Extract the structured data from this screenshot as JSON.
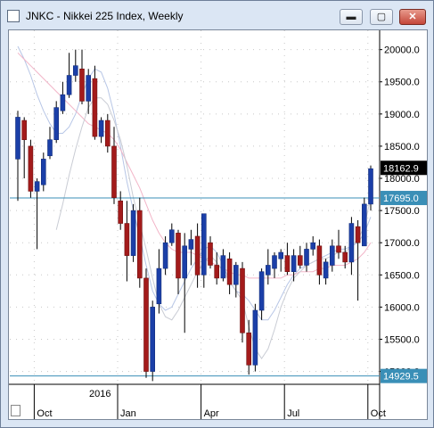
{
  "window": {
    "title": "JNKC - Nikkei 225 Index, Weekly",
    "buttons": {
      "minimize": "▬",
      "maximize": "▢",
      "close": "✕"
    }
  },
  "chart_data": {
    "type": "candlestick",
    "y_ticks": [
      15000.0,
      15500.0,
      16000.0,
      16500.0,
      17000.0,
      17500.0,
      18000.0,
      18500.0,
      19000.0,
      19500.0,
      20000.0
    ],
    "y_tick_labels": [
      "15000.0",
      "15500.0",
      "16000.0",
      "16500.0",
      "17000.0",
      "17500.0",
      "18000.0",
      "18500.0",
      "19000.0",
      "19500.0",
      "20000.0"
    ],
    "x_labels": [
      "Oct",
      "Jan",
      "Apr",
      "Jul",
      "Oct"
    ],
    "year_label": "2016",
    "current_price": 18162.9,
    "current_price_label": "18162.9",
    "hlines": [
      {
        "value": 17695.0,
        "label": "17695.0"
      },
      {
        "value": 14929.5,
        "label": "14929.5"
      }
    ],
    "candles": [
      [
        18300,
        19050,
        17650,
        18950
      ],
      [
        18900,
        18950,
        18000,
        18600
      ],
      [
        18500,
        18600,
        17700,
        17800
      ],
      [
        17800,
        18000,
        16900,
        17950
      ],
      [
        17900,
        18400,
        17800,
        18300
      ],
      [
        18350,
        18800,
        18300,
        18600
      ],
      [
        18600,
        19200,
        18550,
        19100
      ],
      [
        19050,
        19500,
        19000,
        19300
      ],
      [
        19300,
        19950,
        19250,
        19600
      ],
      [
        19600,
        20000,
        19500,
        19750
      ],
      [
        19700,
        20000,
        19150,
        19200
      ],
      [
        19200,
        19700,
        19000,
        19600
      ],
      [
        19550,
        19750,
        18600,
        18650
      ],
      [
        18650,
        18950,
        18550,
        18900
      ],
      [
        18900,
        19000,
        18400,
        18500
      ],
      [
        18500,
        18800,
        17600,
        17700
      ],
      [
        17650,
        17800,
        17200,
        17300
      ],
      [
        17300,
        17650,
        16400,
        16800
      ],
      [
        16800,
        17600,
        16700,
        17500
      ],
      [
        17500,
        17700,
        16300,
        16450
      ],
      [
        16450,
        16600,
        14900,
        15000
      ],
      [
        15000,
        16100,
        14850,
        16000
      ],
      [
        16050,
        16900,
        15900,
        16600
      ],
      [
        16600,
        17100,
        16500,
        17000
      ],
      [
        17000,
        17300,
        16950,
        17200
      ],
      [
        17150,
        17200,
        16200,
        16450
      ],
      [
        16450,
        17150,
        15600,
        16950
      ],
      [
        16900,
        17200,
        16650,
        17050
      ],
      [
        17100,
        17300,
        16300,
        16500
      ],
      [
        16500,
        17400,
        16300,
        17450
      ],
      [
        17000,
        17100,
        16600,
        16650
      ],
      [
        16650,
        16850,
        16350,
        16450
      ],
      [
        16450,
        16900,
        16400,
        16800
      ],
      [
        16750,
        16850,
        16200,
        16350
      ],
      [
        16350,
        16700,
        16150,
        16650
      ],
      [
        16600,
        16700,
        15450,
        15600
      ],
      [
        15600,
        15800,
        14950,
        15100
      ],
      [
        15100,
        16050,
        15000,
        15950
      ],
      [
        15950,
        16600,
        15800,
        16550
      ],
      [
        16500,
        16900,
        16350,
        16650
      ],
      [
        16600,
        16850,
        16450,
        16800
      ],
      [
        16750,
        16900,
        16550,
        16850
      ],
      [
        16800,
        17000,
        16500,
        16550
      ],
      [
        16550,
        16900,
        16400,
        16800
      ],
      [
        16800,
        16950,
        16600,
        16650
      ],
      [
        16650,
        17000,
        16550,
        16900
      ],
      [
        16900,
        17100,
        16800,
        17000
      ],
      [
        16950,
        17050,
        16350,
        16500
      ],
      [
        16450,
        16750,
        16350,
        16700
      ],
      [
        16650,
        17050,
        16550,
        16950
      ],
      [
        16950,
        17200,
        16750,
        16850
      ],
      [
        16850,
        16950,
        16600,
        16700
      ],
      [
        16700,
        17400,
        16500,
        17300
      ],
      [
        17250,
        17350,
        16100,
        17000
      ],
      [
        16950,
        17700,
        16950,
        17600
      ],
      [
        17600,
        18200,
        17500,
        18150
      ]
    ],
    "series": [
      {
        "name": "",
        "color": "#b7c6e6",
        "values": [
          20050,
          19850,
          19600,
          19300,
          19050,
          18850,
          18700,
          18700,
          18800,
          19000,
          19300,
          19550,
          19700,
          19650,
          19400,
          19000,
          18500,
          17950,
          17500,
          17100,
          16650,
          16250,
          16050,
          15950,
          16000,
          16200,
          16400,
          16600,
          16750,
          16900,
          16950,
          16850,
          16650,
          16400,
          16250,
          16200,
          16100,
          15950,
          15800,
          15800,
          15950,
          16150,
          16350,
          16500,
          16600,
          16650,
          16700,
          16750,
          16800,
          16850,
          16900,
          16900,
          16950,
          17000,
          17150,
          17400
        ]
      },
      {
        "name": "",
        "color": "#f2b5c8",
        "values": [
          19950,
          19850,
          19750,
          19650,
          19550,
          19450,
          19350,
          19250,
          19150,
          19050,
          18950,
          18850,
          18800,
          18750,
          18700,
          18600,
          18450,
          18250,
          18050,
          17850,
          17600,
          17350,
          17150,
          17000,
          16900,
          16850,
          16850,
          16850,
          16800,
          16750,
          16700,
          16650,
          16600,
          16550,
          16500,
          16500,
          16450,
          16450,
          16450,
          16450,
          16450,
          16450,
          16500,
          16500,
          16550,
          16550,
          16550,
          16600,
          16600,
          16650,
          16650,
          16650,
          16700,
          16750,
          16850,
          17000
        ]
      },
      {
        "name": "",
        "color": "#c9ccd4",
        "values": [
          null,
          null,
          null,
          null,
          null,
          null,
          17200,
          17600,
          18050,
          18450,
          18800,
          19100,
          19250,
          19250,
          19150,
          18900,
          18600,
          18200,
          17700,
          17300,
          16900,
          16450,
          16050,
          15850,
          15800,
          15950,
          16150,
          16350,
          16550,
          16700,
          16800,
          16700,
          16550,
          16400,
          16250,
          16100,
          15700,
          15350,
          15200,
          15350,
          15650,
          16000,
          16250,
          16450,
          16550,
          16650,
          16700,
          16750,
          16750,
          16800,
          16850,
          16850,
          16950,
          17050,
          17250,
          17700
        ]
      }
    ]
  }
}
